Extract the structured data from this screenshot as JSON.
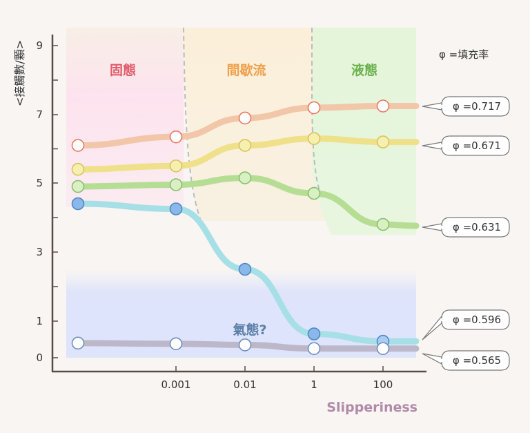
{
  "chart_data": {
    "type": "line",
    "title": "",
    "xlabel": "Slipperiness",
    "ylabel": "<接觸數/顆>",
    "x_scale": "log",
    "x": [
      1e-05,
      0.001,
      0.01,
      1,
      100
    ],
    "x_tick_labels": [
      "0.001",
      "0.01",
      "1",
      "100"
    ],
    "y_ticks": [
      "0",
      "1",
      "3",
      "5",
      "7",
      "9"
    ],
    "ylim": [
      0,
      9
    ],
    "legend_title": "φ =填充率",
    "series": [
      {
        "name": "φ =0.717",
        "color": "#f2c6a8",
        "marker": "#e8795f",
        "values": [
          6.1,
          6.35,
          6.9,
          7.2,
          7.25
        ]
      },
      {
        "name": "φ =0.671",
        "color": "#efe08a",
        "marker": "#d9c25a",
        "values": [
          5.4,
          5.5,
          6.1,
          6.3,
          6.2
        ]
      },
      {
        "name": "φ =0.631",
        "color": "#b6dd94",
        "marker": "#88c06a",
        "values": [
          4.9,
          4.95,
          5.15,
          4.7,
          3.8
        ]
      },
      {
        "name": "φ =0.596",
        "color": "#a6e0e6",
        "marker": "#4f86c6",
        "values": [
          4.4,
          4.25,
          2.5,
          0.65,
          0.45
        ]
      },
      {
        "name": "φ =0.565",
        "color": "#bdb8c9",
        "marker": "#6f8fbf",
        "values": [
          0.4,
          0.38,
          0.35,
          0.25,
          0.25
        ]
      }
    ],
    "phases": [
      {
        "label": "固態",
        "color": "#e05a6a"
      },
      {
        "label": "間歇流",
        "color": "#f0a04a"
      },
      {
        "label": "液態",
        "color": "#6ab04c"
      },
      {
        "label": "氣態?",
        "color": "#5a7fa6"
      }
    ],
    "grid": false
  }
}
